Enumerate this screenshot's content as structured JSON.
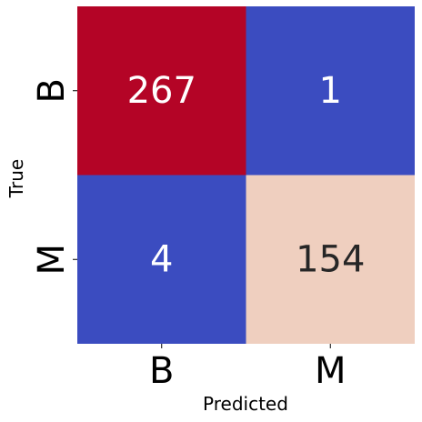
{
  "chart_data": {
    "type": "heatmap",
    "title": "",
    "xlabel": "Predicted",
    "ylabel": "True",
    "x_categories": [
      "B",
      "M"
    ],
    "y_categories": [
      "B",
      "M"
    ],
    "values": [
      [
        267,
        1
      ],
      [
        4,
        154
      ]
    ],
    "colormap": "coolwarm",
    "colorbar": false,
    "cell_colors": [
      [
        "#b40426",
        "#3b4cc0"
      ],
      [
        "#3b4cc0",
        "#efcfbf"
      ]
    ],
    "text_colors": [
      [
        "#ffffff",
        "#ffffff"
      ],
      [
        "#ffffff",
        "#262626"
      ]
    ]
  }
}
